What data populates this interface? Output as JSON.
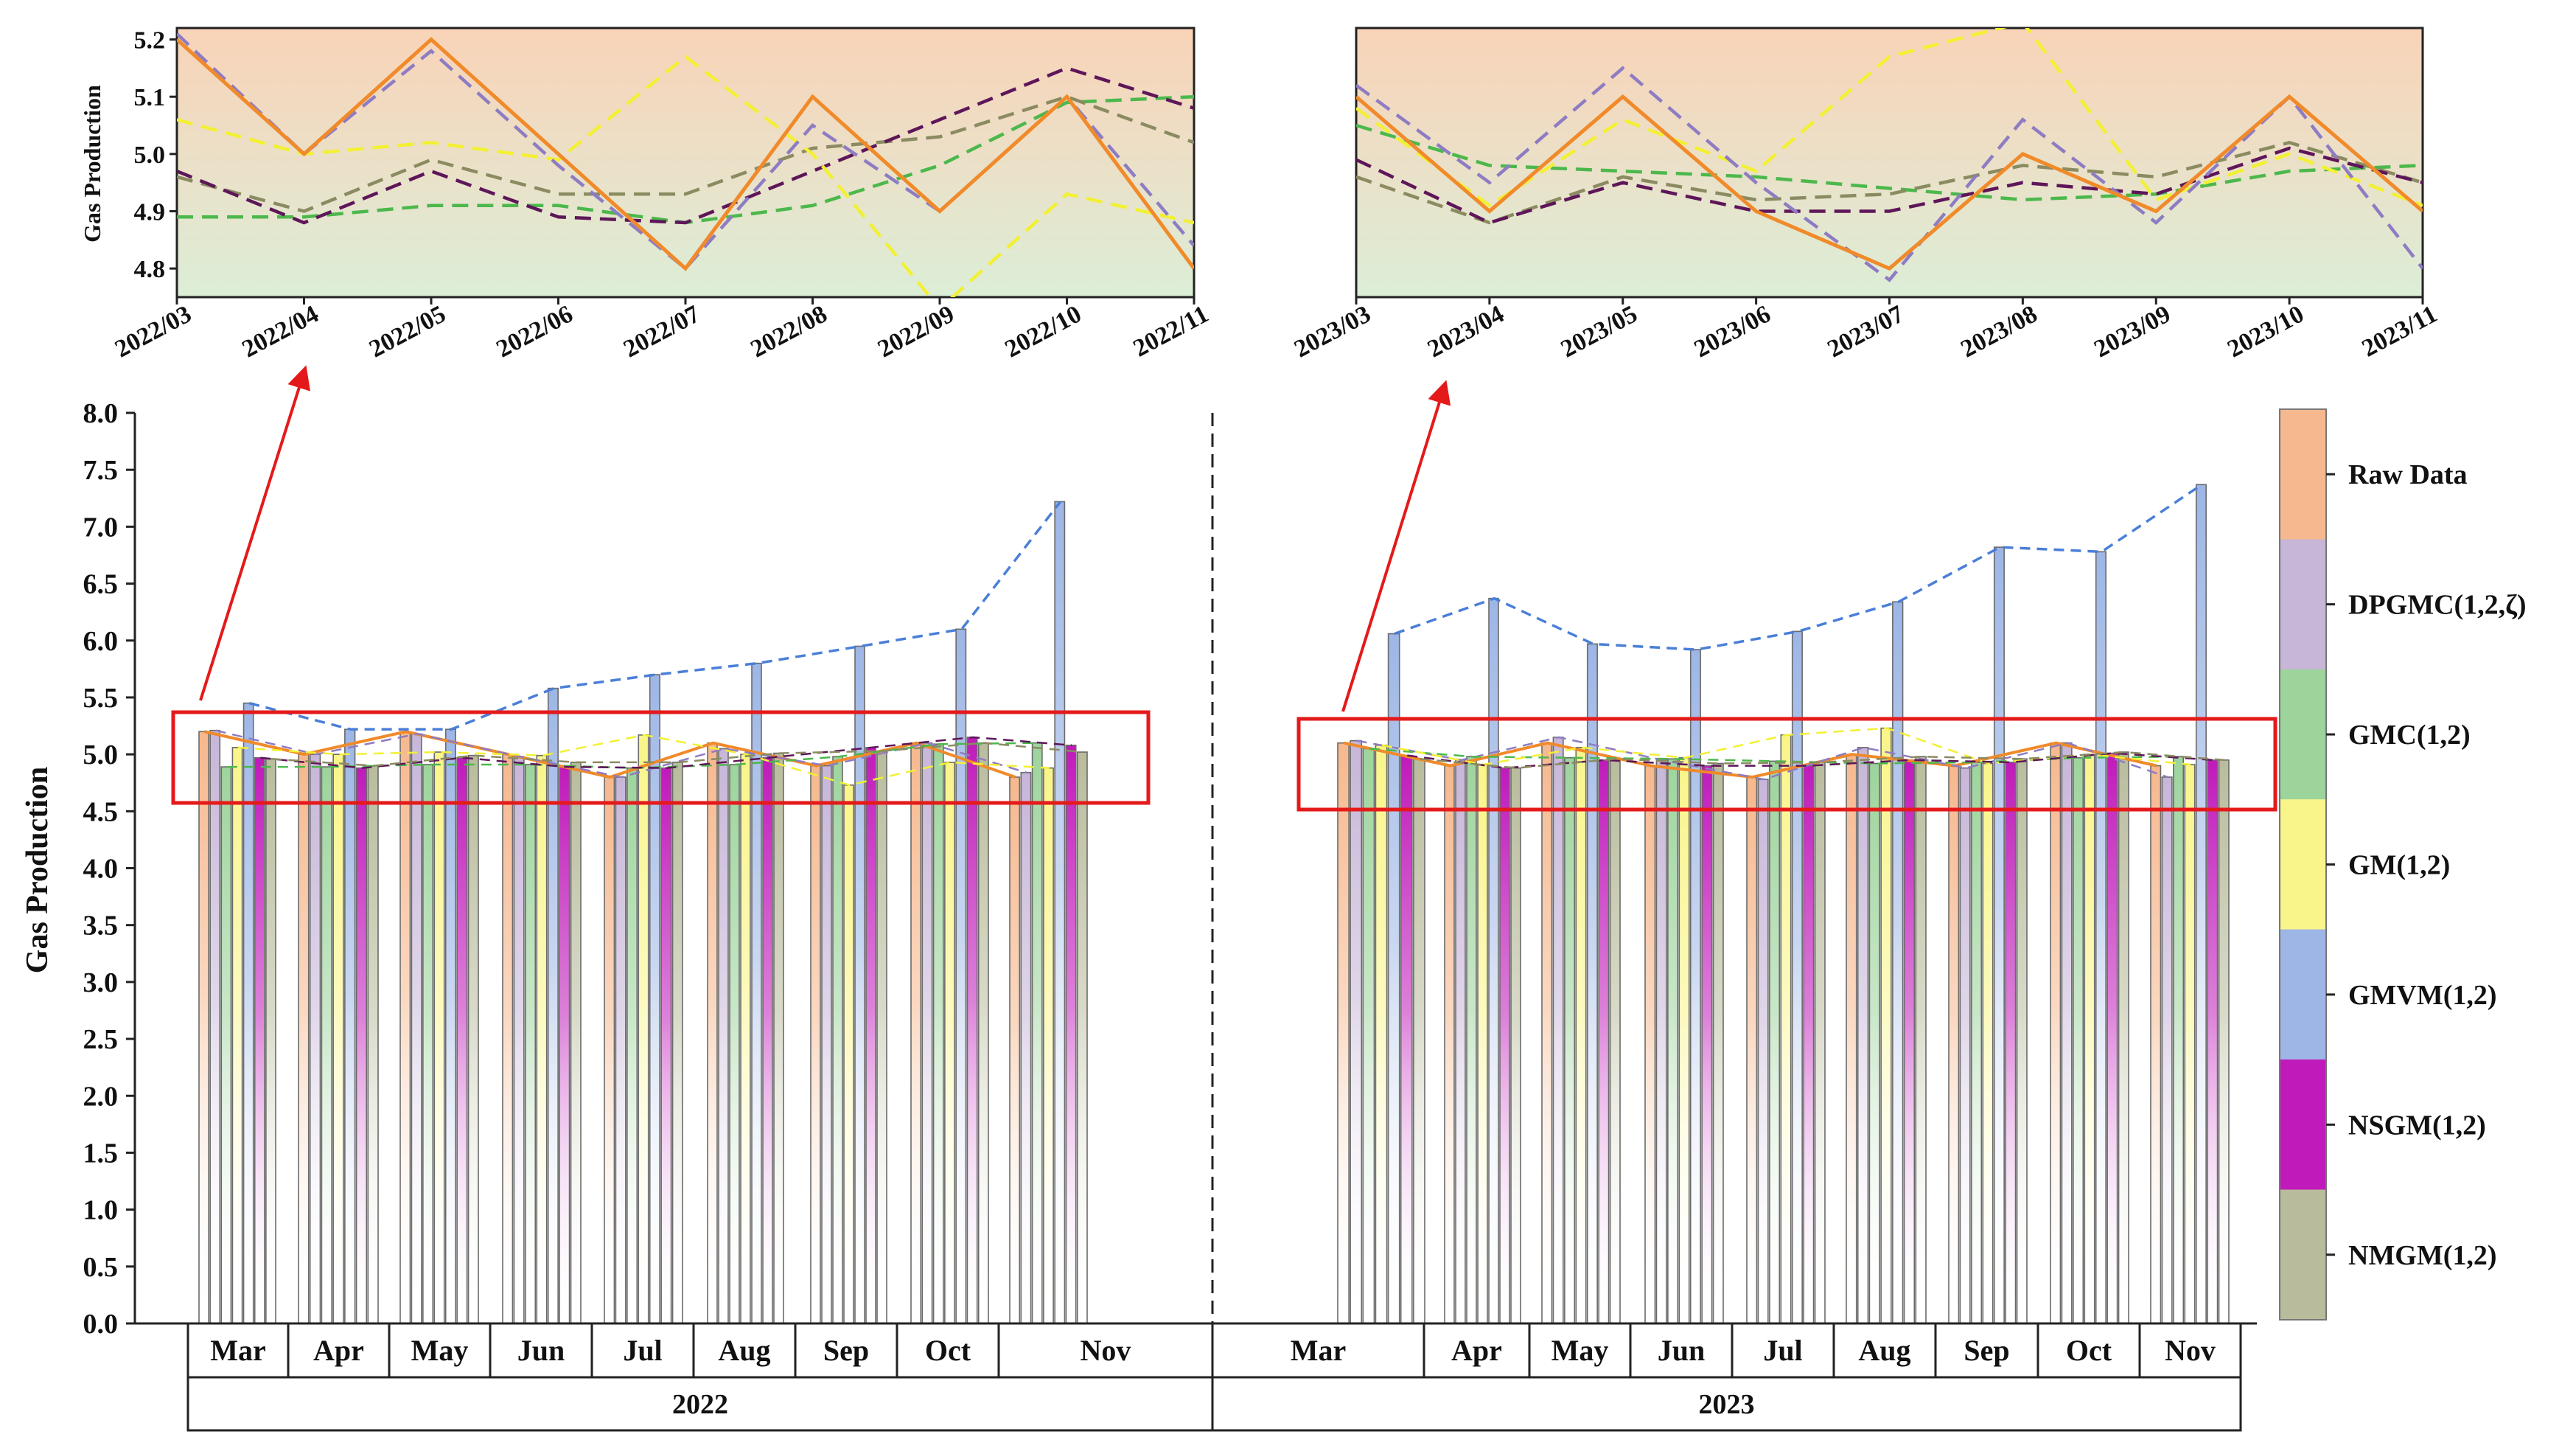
{
  "colors": {
    "raw": "#F6B88E",
    "dpgmc": "#C7B6D8",
    "gmc": "#9DD49C",
    "gm": "#F9F58A",
    "gmvm": "#9DB6E6",
    "nsgm": "#C01ABA",
    "nmgm": "#B9BC9C",
    "raw_line": "#F08A2A",
    "gmvm_line": "#4A7FD8",
    "dpgmc_line": "#8E7CC3",
    "gmc_line": "#4CB84C",
    "gm_line": "#F3F034",
    "nsgm_line": "#5E1659",
    "nmgm_line": "#8B8B62",
    "highlight": "#E41A1A",
    "inset_top": "#F9D3B8",
    "inset_bottom": "#DCEED7"
  },
  "chart_data": [
    {
      "id": "main",
      "type": "bar",
      "ylabel": "Gas Production",
      "ylim": [
        0,
        8.0
      ],
      "yticks": [
        "0.0",
        "0.5",
        "1.0",
        "1.5",
        "2.0",
        "2.5",
        "3.0",
        "3.5",
        "4.0",
        "4.5",
        "5.0",
        "5.5",
        "6.0",
        "6.5",
        "7.0",
        "7.5",
        "8.0"
      ],
      "years": [
        "2022",
        "2023"
      ],
      "months": [
        "Mar",
        "Apr",
        "May",
        "Jun",
        "Jul",
        "Aug",
        "Sep",
        "Oct",
        "Nov"
      ],
      "series": [
        {
          "name": "Raw Data",
          "color_key": "raw",
          "values_2022": [
            5.2,
            5.0,
            5.2,
            5.0,
            4.8,
            5.1,
            4.9,
            5.1,
            4.8
          ],
          "values_2023": [
            5.1,
            4.9,
            5.1,
            4.9,
            4.8,
            5.0,
            4.9,
            5.1,
            4.9
          ]
        },
        {
          "name": "DPGMC(1,2,ζ)",
          "color_key": "dpgmc",
          "values_2022": [
            5.21,
            5.0,
            5.18,
            4.98,
            4.8,
            5.05,
            4.9,
            5.1,
            4.84
          ],
          "values_2023": [
            5.12,
            4.95,
            5.15,
            4.95,
            4.78,
            5.06,
            4.88,
            5.1,
            4.8
          ]
        },
        {
          "name": "GMC(1,2)",
          "color_key": "gmc",
          "values_2022": [
            4.89,
            4.89,
            4.91,
            4.91,
            4.88,
            4.91,
            4.98,
            5.09,
            5.1
          ],
          "values_2023": [
            5.05,
            4.98,
            4.97,
            4.96,
            4.94,
            4.92,
            4.93,
            4.97,
            4.98
          ]
        },
        {
          "name": "GM(1,2)",
          "color_key": "gm",
          "values_2022": [
            5.06,
            5.0,
            5.02,
            4.99,
            5.17,
            5.0,
            4.73,
            4.93,
            4.88
          ],
          "values_2023": [
            5.08,
            4.91,
            5.06,
            4.97,
            5.17,
            5.23,
            4.92,
            5.0,
            4.91
          ]
        },
        {
          "name": "GMVM(1,2)",
          "color_key": "gmvm",
          "values_2022": [
            5.45,
            5.22,
            5.22,
            5.58,
            5.7,
            5.8,
            5.95,
            6.1,
            7.22
          ],
          "values_2023": [
            6.06,
            6.37,
            5.97,
            5.92,
            6.08,
            6.34,
            6.82,
            6.78,
            7.37
          ]
        },
        {
          "name": "NSGM(1,2)",
          "color_key": "nsgm",
          "values_2022": [
            4.97,
            4.88,
            4.97,
            4.89,
            4.88,
            4.97,
            5.06,
            5.15,
            5.08
          ],
          "values_2023": [
            4.99,
            4.88,
            4.95,
            4.9,
            4.9,
            4.95,
            4.93,
            5.01,
            4.95
          ]
        },
        {
          "name": "NMGM(1,2)",
          "color_key": "nmgm",
          "values_2022": [
            4.96,
            4.9,
            4.99,
            4.93,
            4.93,
            5.01,
            5.03,
            5.1,
            5.02
          ],
          "values_2023": [
            4.96,
            4.88,
            4.96,
            4.92,
            4.93,
            4.98,
            4.96,
            5.02,
            4.95
          ]
        }
      ]
    },
    {
      "id": "inset-2022",
      "type": "line",
      "ylabel": "Gas Production",
      "ylim": [
        4.75,
        5.22
      ],
      "yticks": [
        "4.8",
        "4.9",
        "5.0",
        "5.1",
        "5.2"
      ],
      "x": [
        "2022/03",
        "2022/04",
        "2022/05",
        "2022/06",
        "2022/07",
        "2022/08",
        "2022/09",
        "2022/10",
        "2022/11"
      ]
    },
    {
      "id": "inset-2023",
      "type": "line",
      "ylim": [
        4.75,
        5.22
      ],
      "x": [
        "2023/03",
        "2023/04",
        "2023/05",
        "2023/06",
        "2023/07",
        "2023/08",
        "2023/09",
        "2023/10",
        "2023/11"
      ]
    }
  ]
}
